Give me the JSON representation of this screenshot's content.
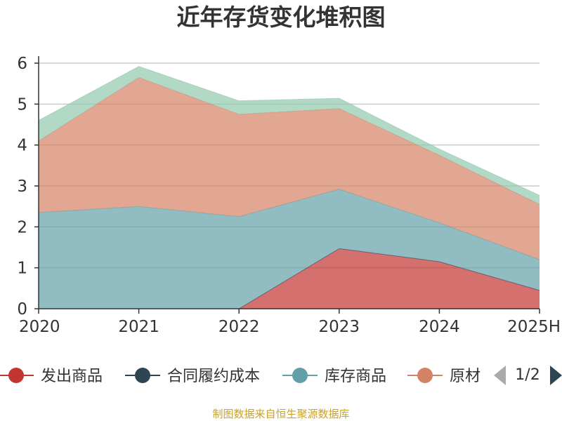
{
  "chart_data": {
    "type": "area",
    "stacked": true,
    "title": "近年存货变化堆积图",
    "ylabel": "",
    "categories": [
      "2020",
      "2021",
      "2022",
      "2023",
      "2024",
      "2025H"
    ],
    "ylim": [
      0,
      6
    ],
    "yticks": [
      "0",
      "1",
      "2",
      "3",
      "4",
      "5",
      "6"
    ],
    "grid": true,
    "series": [
      {
        "name": "发出商品",
        "color": "#c23531",
        "values": [
          0,
          0,
          0,
          1.47,
          1.15,
          0.45
        ]
      },
      {
        "name": "合同履约成本",
        "color": "#2f4554",
        "values": [
          0,
          0,
          0,
          0,
          0,
          0
        ]
      },
      {
        "name": "库存商品",
        "color": "#61a0a8",
        "values": [
          2.35,
          2.5,
          2.25,
          1.45,
          0.95,
          0.75
        ]
      },
      {
        "name": "原材料",
        "color": "#d48265",
        "values": [
          1.75,
          3.15,
          2.5,
          1.97,
          1.65,
          1.35
        ]
      },
      {
        "name": "",
        "color": "#91c7ae",
        "values": [
          0.5,
          0.27,
          0.33,
          0.25,
          0.15,
          0.22
        ]
      }
    ],
    "legend": {
      "position": "bottom",
      "items": [
        {
          "label": "发出商品",
          "color": "#c23531"
        },
        {
          "label": "合同履约成本",
          "color": "#2f4554"
        },
        {
          "label": "库存商品",
          "color": "#61a0a8"
        },
        {
          "label": "原材",
          "color": "#d48265"
        }
      ],
      "page_text": "1/2"
    },
    "source": "制图数据来自恒生聚源数据库"
  }
}
